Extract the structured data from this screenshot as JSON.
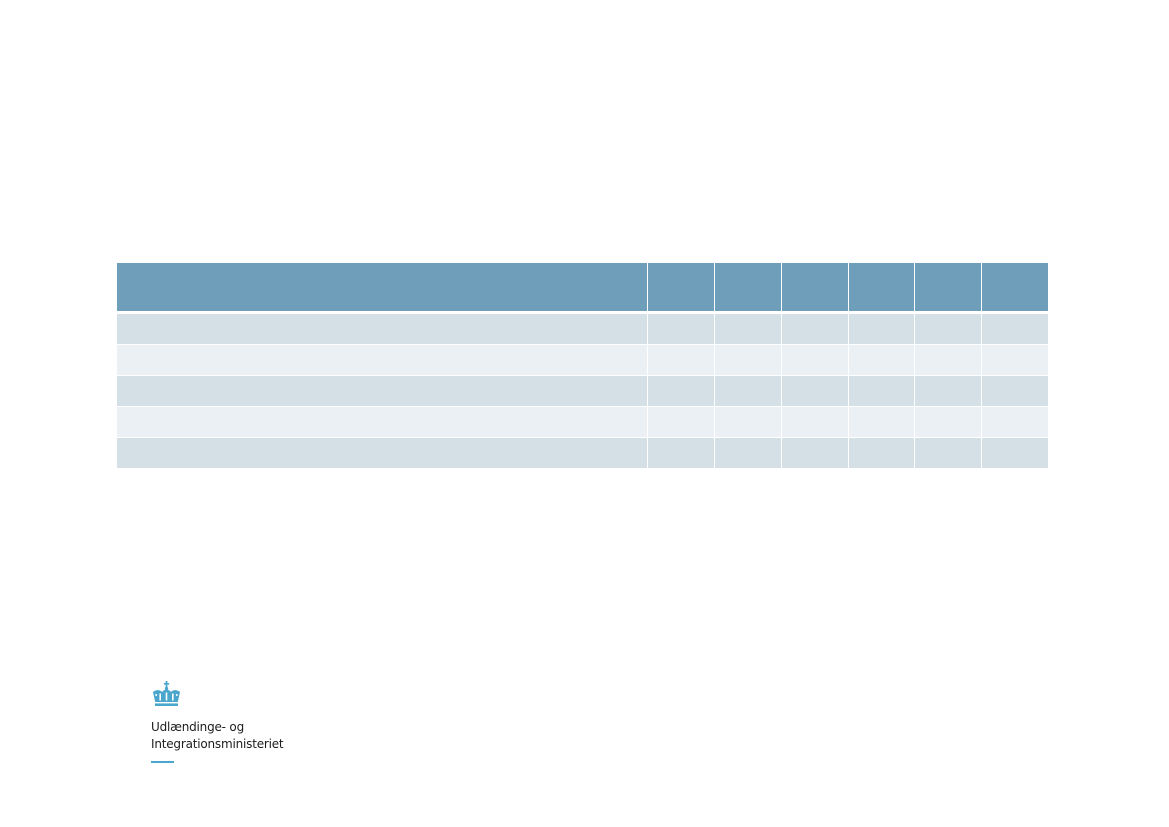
{
  "colors": {
    "header_row": "#6e9eb9",
    "row_dark": "#d4dfe6",
    "row_light": "#eaf0f3",
    "logo_accent": "#4aa6cc"
  },
  "table": {
    "column_count": 7,
    "header": [
      "",
      "",
      "",
      "",
      "",
      "",
      ""
    ],
    "rows": [
      [
        "",
        "",
        "",
        "",
        "",
        "",
        ""
      ],
      [
        "",
        "",
        "",
        "",
        "",
        "",
        ""
      ],
      [
        "",
        "",
        "",
        "",
        "",
        "",
        ""
      ],
      [
        "",
        "",
        "",
        "",
        "",
        "",
        ""
      ],
      [
        "",
        "",
        "",
        "",
        "",
        "",
        ""
      ]
    ]
  },
  "logo": {
    "icon": "crown-icon",
    "line1": "Udlændinge- og",
    "line2": "Integrationsministeriet"
  }
}
